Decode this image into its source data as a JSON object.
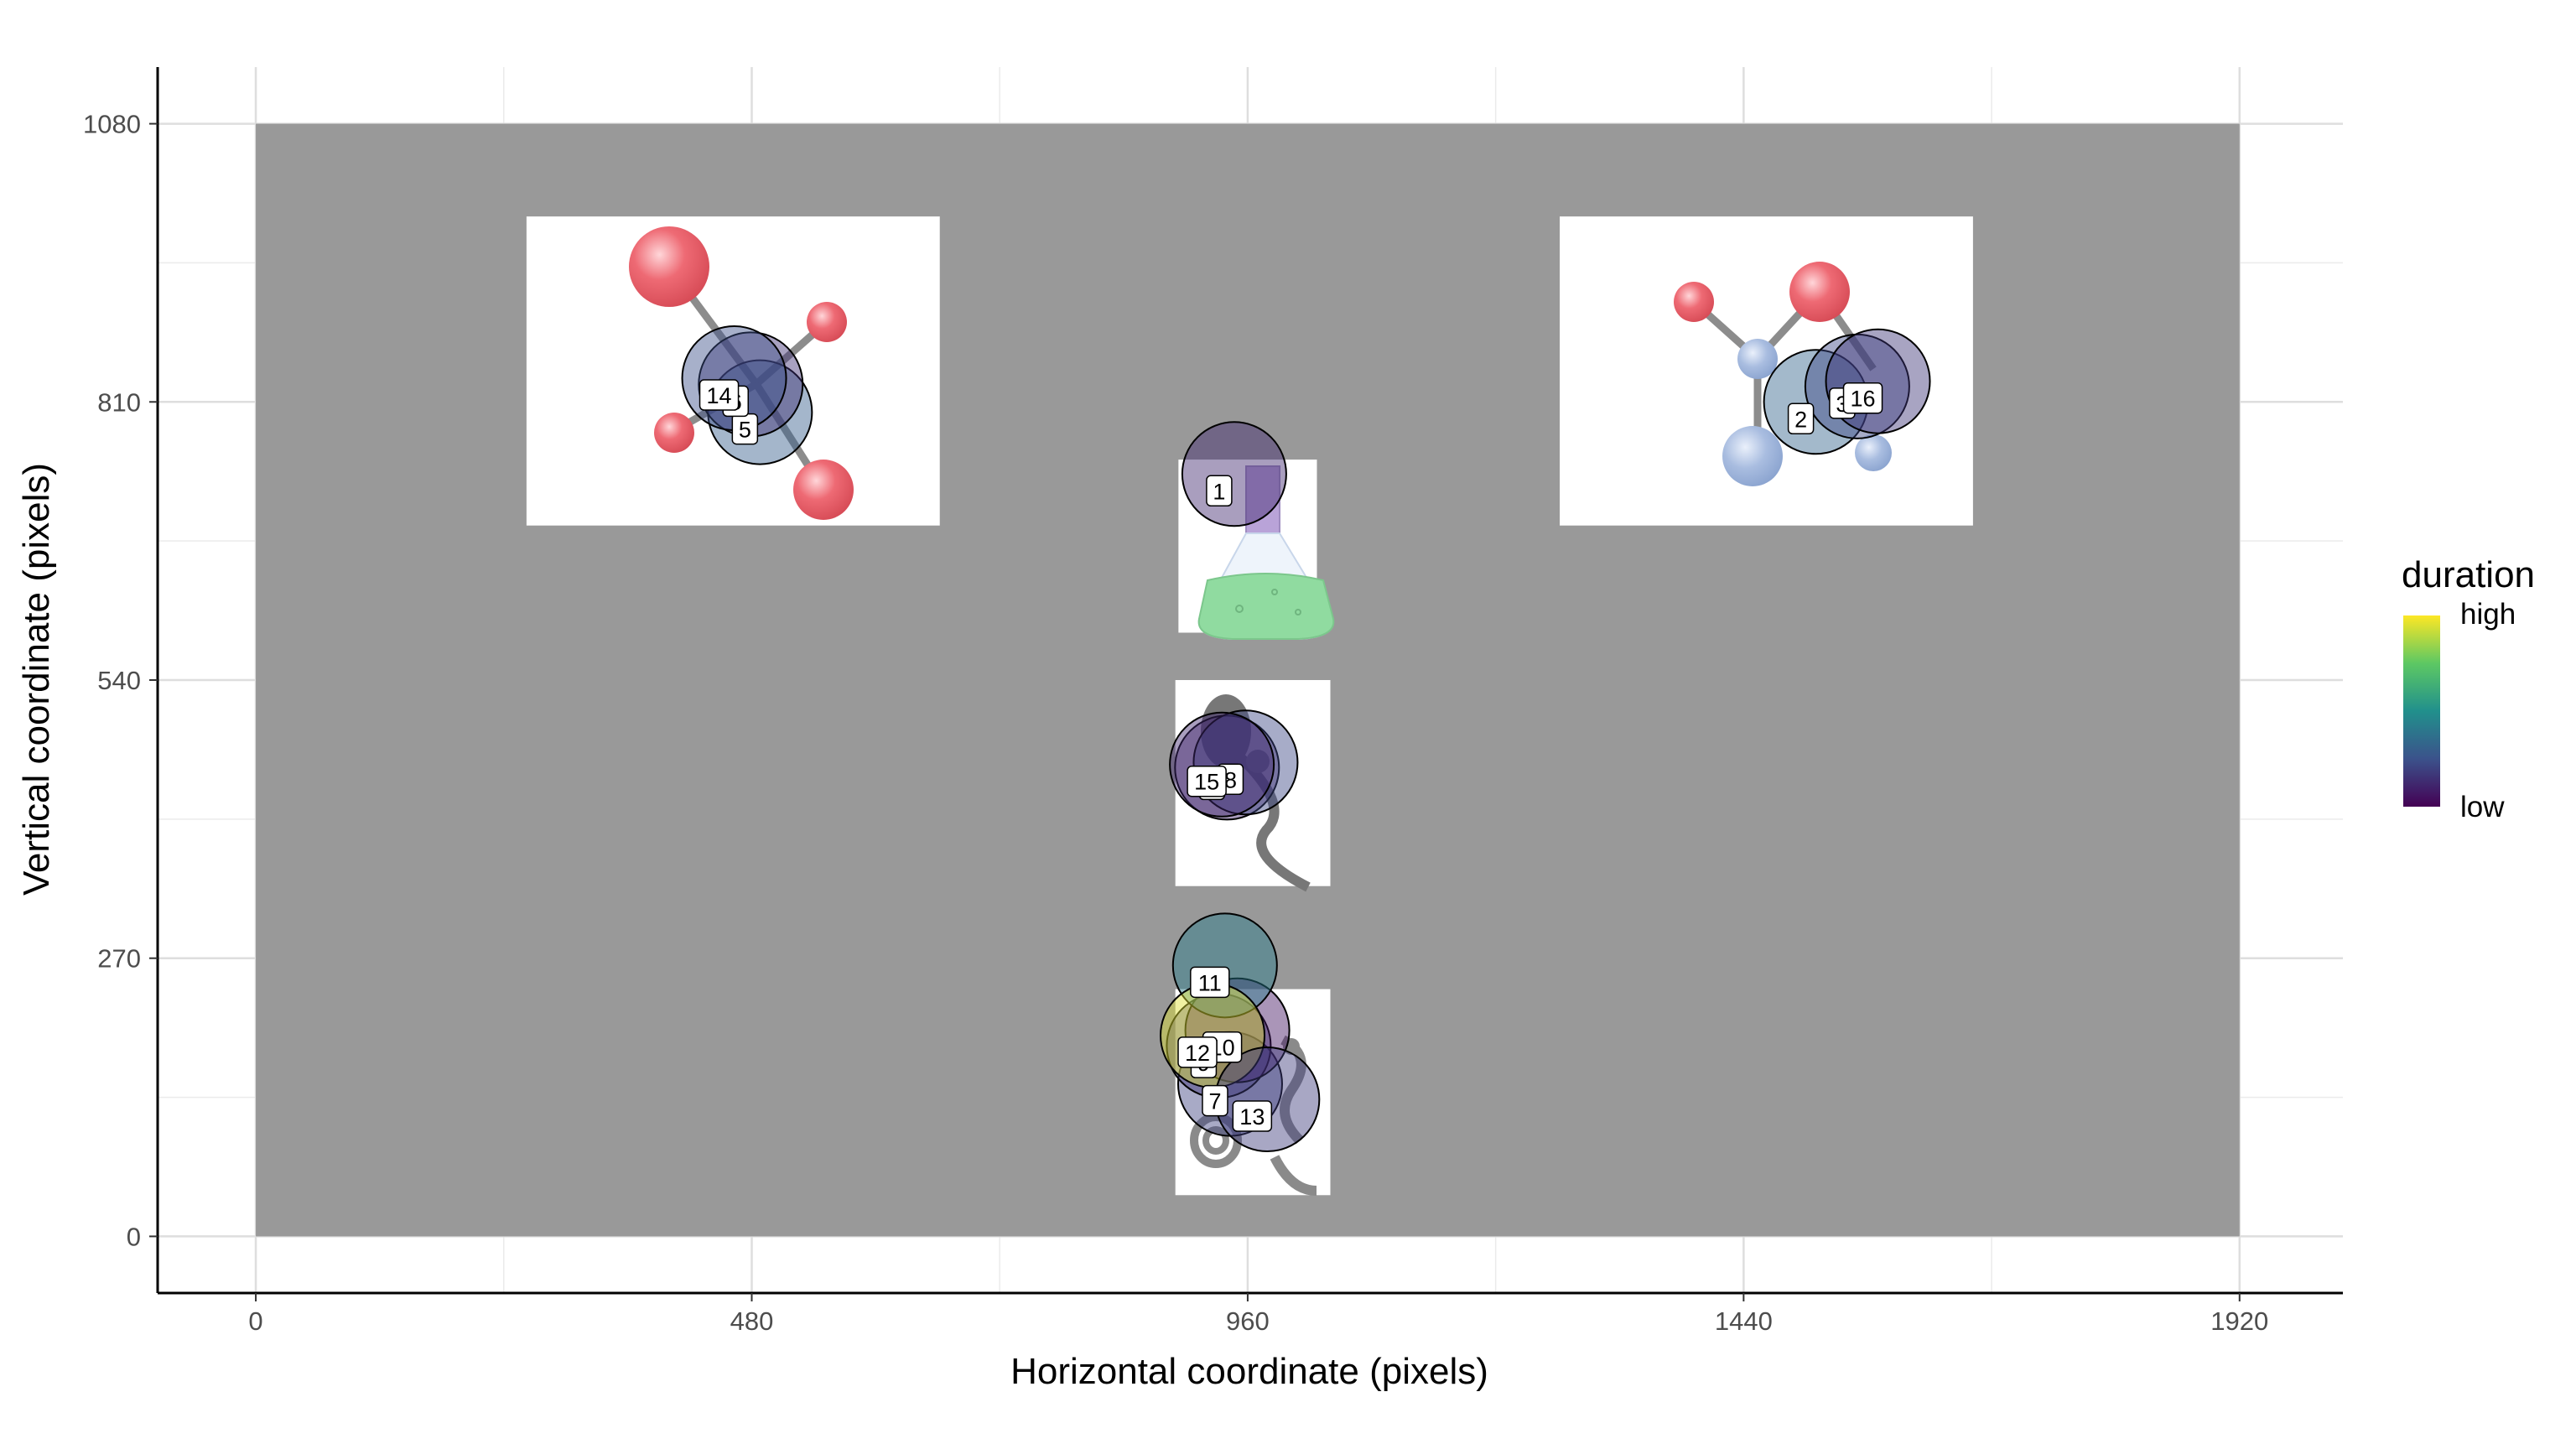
{
  "chart_data": {
    "type": "scatter",
    "title": "",
    "xlabel": "Horizontal coordinate (pixels)",
    "ylabel": "Vertical coordinate (pixels)",
    "xlim": [
      -95,
      2020
    ],
    "ylim": [
      -55,
      1135
    ],
    "x_ticks": [
      0,
      480,
      960,
      1440,
      1920
    ],
    "y_ticks": [
      0,
      270,
      540,
      810,
      1080
    ],
    "x_minor": [
      240,
      720,
      1200,
      1680
    ],
    "y_minor": [
      135,
      405,
      675,
      945
    ],
    "grid": true,
    "legend": {
      "title": "duration",
      "high_label": "high",
      "low_label": "low",
      "position": "right"
    },
    "colors": {
      "stimulus_background": "#999999",
      "object_image_background": "#ffffff",
      "grid": "#ebebeb",
      "atom_red": "#ee6a74",
      "atom_blue": "#a9bde0",
      "bond": "#8c8c8c",
      "flask_liquid": "#90dba0",
      "flask_glass": "#eef4fb"
    },
    "stimulus": {
      "xmin": 0,
      "xmax": 1920,
      "ymin": 0,
      "ymax": 1080
    },
    "images": [
      {
        "name": "molecule-left-image",
        "xmin": 262,
        "xmax": 662,
        "ymin": 690,
        "ymax": 990
      },
      {
        "name": "molecule-right-image",
        "xmin": 1262,
        "xmax": 1662,
        "ymin": 690,
        "ymax": 990
      },
      {
        "name": "flask-image",
        "xmin": 893,
        "xmax": 1027,
        "ymin": 586,
        "ymax": 754
      },
      {
        "name": "sperm-cell-image",
        "xmin": 890,
        "xmax": 1040,
        "ymin": 340,
        "ymax": 540
      },
      {
        "name": "creature-image",
        "xmin": 890,
        "xmax": 1040,
        "ymin": 40,
        "ymax": 240
      }
    ],
    "fixations": [
      {
        "label": "1",
        "x": 947,
        "y": 740,
        "duration": 0.12
      },
      {
        "label": "2",
        "x": 1510,
        "y": 810,
        "duration": 0.32
      },
      {
        "label": "3",
        "x": 1550,
        "y": 825,
        "duration": 0.22
      },
      {
        "label": "4",
        "x": 940,
        "y": 455,
        "duration": 0.1
      },
      {
        "label": "5",
        "x": 488,
        "y": 800,
        "duration": 0.3
      },
      {
        "label": "6",
        "x": 479,
        "y": 827,
        "duration": 0.14
      },
      {
        "label": "7",
        "x": 943,
        "y": 148,
        "duration": 0.2
      },
      {
        "label": "8",
        "x": 958,
        "y": 460,
        "duration": 0.22
      },
      {
        "label": "9",
        "x": 932,
        "y": 185,
        "duration": 0.16
      },
      {
        "label": "10",
        "x": 950,
        "y": 200,
        "duration": 0.06
      },
      {
        "label": "11",
        "x": 938,
        "y": 263,
        "duration": 0.42
      },
      {
        "label": "12",
        "x": 926,
        "y": 195,
        "duration": 0.95
      },
      {
        "label": "13",
        "x": 979,
        "y": 133,
        "duration": 0.18
      },
      {
        "label": "14",
        "x": 463,
        "y": 833,
        "duration": 0.24
      },
      {
        "label": "15",
        "x": 935,
        "y": 458,
        "duration": 0.12
      },
      {
        "label": "16",
        "x": 1570,
        "y": 830,
        "duration": 0.16
      }
    ]
  }
}
